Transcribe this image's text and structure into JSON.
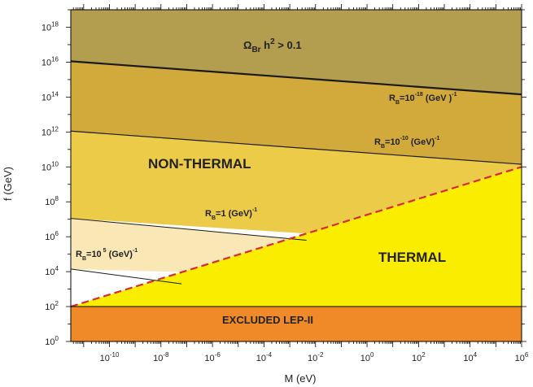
{
  "chart_data": {
    "type": "area",
    "title": "",
    "xlabel": "M (eV)",
    "ylabel": "f (GeV)",
    "xscale": "log",
    "yscale": "log",
    "xlim_log10": [
      -11.5,
      6
    ],
    "ylim_log10": [
      0,
      19
    ],
    "x_ticks": [
      {
        "exp": -10,
        "label": "10-10",
        "base": "10",
        "sup": "-10"
      },
      {
        "exp": -8,
        "label": "10-8",
        "base": "10",
        "sup": "-8"
      },
      {
        "exp": -6,
        "label": "10-6",
        "base": "10",
        "sup": "-6"
      },
      {
        "exp": -4,
        "label": "10-4",
        "base": "10",
        "sup": "-4"
      },
      {
        "exp": -2,
        "label": "10-2",
        "base": "10",
        "sup": "-2"
      },
      {
        "exp": 0,
        "label": "100",
        "base": "10",
        "sup": "0"
      },
      {
        "exp": 2,
        "label": "102",
        "base": "10",
        "sup": "2"
      },
      {
        "exp": 4,
        "label": "104",
        "base": "10",
        "sup": "4"
      },
      {
        "exp": 6,
        "label": "106",
        "base": "10",
        "sup": "6"
      }
    ],
    "y_ticks": [
      {
        "exp": 0,
        "label": "100",
        "base": "10",
        "sup": "0"
      },
      {
        "exp": 2,
        "label": "102",
        "base": "10",
        "sup": "2"
      },
      {
        "exp": 4,
        "label": "104",
        "base": "10",
        "sup": "4"
      },
      {
        "exp": 6,
        "label": "106",
        "base": "10",
        "sup": "6"
      },
      {
        "exp": 8,
        "label": "108",
        "base": "10",
        "sup": "8"
      },
      {
        "exp": 10,
        "label": "1010",
        "base": "10",
        "sup": "10"
      },
      {
        "exp": 12,
        "label": "1012",
        "base": "10",
        "sup": "12"
      },
      {
        "exp": 14,
        "label": "1014",
        "base": "10",
        "sup": "14"
      },
      {
        "exp": 16,
        "label": "1016",
        "base": "10",
        "sup": "16"
      },
      {
        "exp": 18,
        "label": "1018",
        "base": "10",
        "sup": "18"
      }
    ],
    "boundary_lines": [
      {
        "id": "rb-1e-18",
        "label": "RB=10-18 (GeV )-1",
        "x_log10": [
          -11.5,
          6
        ],
        "y_log10": [
          16.05,
          14.15
        ],
        "style": "solid",
        "width": 2.2
      },
      {
        "id": "rb-1e-10",
        "label": "RB=10-10 (GeV)-1",
        "x_log10": [
          -11.5,
          6
        ],
        "y_log10": [
          12.05,
          10.15
        ],
        "style": "solid",
        "width": 1.2
      },
      {
        "id": "rb-1",
        "label": "RB=1 (GeV)-1",
        "x_log10": [
          -11.5,
          -2.35
        ],
        "y_log10": [
          7.05,
          5.8
        ],
        "style": "solid",
        "width": 1
      },
      {
        "id": "rb-1e5",
        "label": "RB=105 (GeV)-1",
        "x_log10": [
          -11.5,
          -7.2
        ],
        "y_log10": [
          4.15,
          3.3
        ],
        "style": "solid",
        "width": 1
      },
      {
        "id": "thermal-boundary",
        "label": "",
        "x_log10": [
          -11.5,
          6
        ],
        "y_log10": [
          2.0,
          10.0
        ],
        "style": "dashed",
        "color": "#d62a3a",
        "width": 2.2
      },
      {
        "id": "lep-bound",
        "label": "",
        "x_log10": [
          -11.5,
          6
        ],
        "y_log10": [
          2.0,
          2.0
        ],
        "style": "solid",
        "width": 1.2
      }
    ],
    "regions": [
      {
        "id": "overclosure",
        "label": "ΩBr h2 > 0.1",
        "color": "#b39d4e",
        "polygon_log10": [
          [
            -11.5,
            19
          ],
          [
            6,
            19
          ],
          [
            6,
            14.15
          ],
          [
            -11.5,
            16.05
          ]
        ]
      },
      {
        "id": "between-18-10",
        "label": "",
        "color": "#d2aa3c",
        "polygon_log10": [
          [
            -11.5,
            16.05
          ],
          [
            6,
            14.15
          ],
          [
            6,
            10.15
          ],
          [
            -11.5,
            12.05
          ]
        ]
      },
      {
        "id": "non-thermal",
        "label": "NON-THERMAL",
        "color": "#ebcb48",
        "polygon_log10": [
          [
            -11.5,
            12.05
          ],
          [
            6,
            10.15
          ],
          [
            6,
            10.0
          ],
          [
            -2.35,
            6.18
          ],
          [
            -11.5,
            7.05
          ]
        ]
      },
      {
        "id": "non-thermal-low",
        "label": "",
        "color": "#f9e7b6",
        "polygon_log10": [
          [
            -11.5,
            7.05
          ],
          [
            -2.35,
            5.8
          ],
          [
            -7.2,
            3.97
          ],
          [
            -11.5,
            4.15
          ]
        ]
      },
      {
        "id": "thermal",
        "label": "THERMAL",
        "color": "#fbed00",
        "polygon_log10": [
          [
            -11.5,
            2.0
          ],
          [
            6,
            10.0
          ],
          [
            6,
            2.0
          ]
        ]
      },
      {
        "id": "lep-excluded",
        "label": "EXCLUDED LEP-II",
        "color": "#f08a28",
        "polygon_log10": [
          [
            -11.5,
            0
          ],
          [
            6,
            0
          ],
          [
            6,
            2.0
          ],
          [
            -11.5,
            2.0
          ]
        ]
      }
    ],
    "labels": {
      "omega": {
        "base": "Ω",
        "sub": "Br",
        "mid": " h",
        "sup": "2",
        "tail": " > 0.1"
      },
      "rb18": {
        "base": "R",
        "sub": "B",
        "mid": "=10",
        "sup": "-18",
        "tail": " (GeV )",
        "sup2": "-1"
      },
      "rb10": {
        "base": "R",
        "sub": "B",
        "mid": "=10",
        "sup": "-10",
        "tail": " (GeV)",
        "sup2": "-1"
      },
      "rb1": {
        "base": "R",
        "sub": "B",
        "mid": "=1 (GeV)",
        "sup": "-1",
        "tail": "",
        "sup2": ""
      },
      "rb5": {
        "base": "R",
        "sub": "B",
        "mid": "=10",
        "sup": " 5",
        "tail": " (GeV)",
        "sup2": "-1"
      },
      "non_thermal": "NON-THERMAL",
      "thermal": "THERMAL",
      "excluded": "EXCLUDED LEP-II"
    },
    "grid": false,
    "legend": "none"
  }
}
